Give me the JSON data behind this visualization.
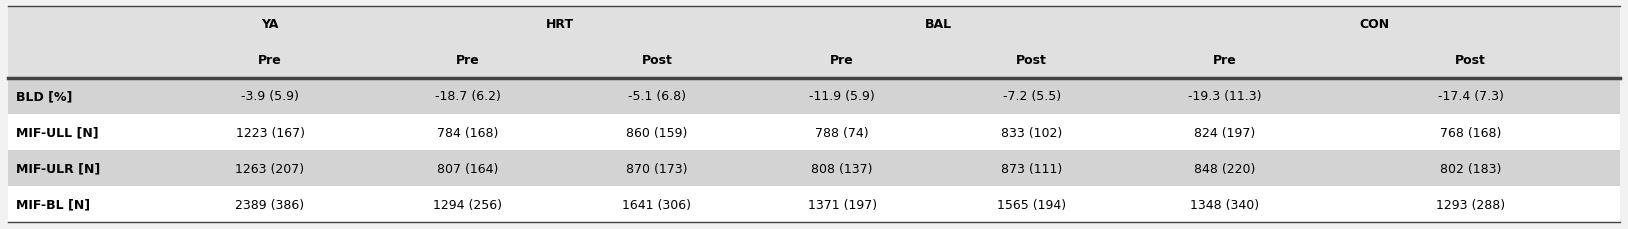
{
  "subheaders": [
    "Pre",
    "Pre",
    "Post",
    "Pre",
    "Post",
    "Pre",
    "Post"
  ],
  "row_headers": [
    "BLD [%]",
    "MIF-ULL [N]",
    "MIF-ULR [N]",
    "MIF-BL [N]"
  ],
  "data": [
    [
      "-3.9 (5.9)",
      "-18.7 (6.2)",
      "-5.1 (6.8)",
      "-11.9 (5.9)",
      "-7.2 (5.5)",
      "-19.3 (11.3)",
      "-17.4 (7.3)"
    ],
    [
      "1223 (167)",
      "784 (168)",
      "860 (159)",
      "788 (74)",
      "833 (102)",
      "824 (197)",
      "768 (168)"
    ],
    [
      "1263 (207)",
      "807 (164)",
      "870 (173)",
      "808 (137)",
      "873 (111)",
      "848 (220)",
      "802 (183)"
    ],
    [
      "2389 (386)",
      "1294 (256)",
      "1641 (306)",
      "1371 (197)",
      "1565 (194)",
      "1348 (340)",
      "1293 (288)"
    ]
  ],
  "col_boundaries": [
    0.0,
    0.1,
    0.225,
    0.345,
    0.46,
    0.575,
    0.695,
    0.815,
    1.0
  ],
  "group_info": [
    {
      "label": "YA",
      "col_indices": [
        1
      ]
    },
    {
      "label": "HRT",
      "col_indices": [
        2,
        3
      ]
    },
    {
      "label": "BAL",
      "col_indices": [
        4,
        5
      ]
    },
    {
      "label": "CON",
      "col_indices": [
        6,
        7
      ]
    }
  ],
  "shaded_rows": [
    0,
    2
  ],
  "shade_color": "#d3d3d3",
  "white_color": "#ffffff",
  "header_bg_color": "#e0e0e0",
  "border_color": "#444444",
  "text_color": "#000000",
  "font_size": 9.0,
  "header_font_size": 9.0,
  "bg_color": "#f2f2f2"
}
